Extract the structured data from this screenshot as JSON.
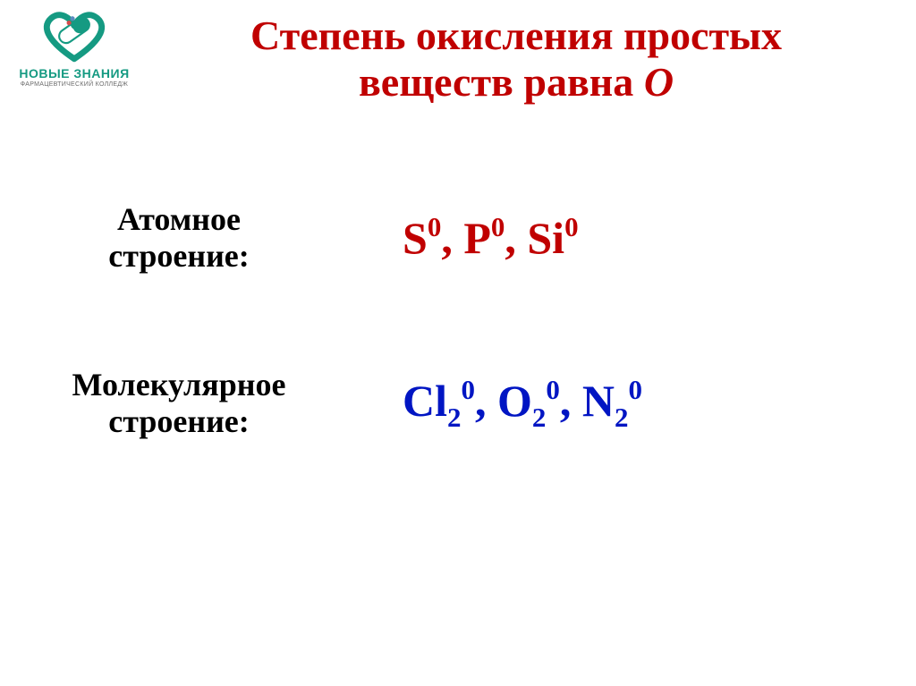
{
  "colors": {
    "title": "#c00000",
    "label": "#000000",
    "row1_formula": "#c00000",
    "row2_formula": "#0015c3",
    "logo_primary": "#159a82",
    "logo_accent_red": "#d34a4a",
    "logo_accent_blue": "#5a8bbf",
    "logo_text": "#159a82",
    "logo_subtext": "#6b6b6b",
    "background": "#ffffff"
  },
  "fontsize": {
    "title": 46,
    "label": 36,
    "formula": 50,
    "logo_main": 14,
    "logo_sub": 7
  },
  "logo": {
    "main": "НОВЫЕ ЗНАНИЯ",
    "sub": "ФАРМАЦЕВТИЧЕСКИЙ КОЛЛЕДЖ"
  },
  "title": {
    "line1": "Степень окисления простых",
    "line2_plain": "веществ равна ",
    "line2_ital": "О"
  },
  "rows": [
    {
      "label_l1": "Атомное",
      "label_l2": "строение:",
      "formula_parts": [
        {
          "base": "S",
          "sup": "0"
        },
        {
          "base": "P",
          "sup": "0"
        },
        {
          "base": "Si",
          "sup": "0"
        }
      ],
      "formula_color_key": "row1_formula"
    },
    {
      "label_l1": "Молекулярное",
      "label_l2": "строение:",
      "formula_parts": [
        {
          "base": "Cl",
          "sub": "2",
          "sup": "0"
        },
        {
          "base": "O",
          "sub": "2",
          "sup": "0"
        },
        {
          "base": "N",
          "sub": "2",
          "sup": "0"
        }
      ],
      "formula_color_key": "row2_formula"
    }
  ]
}
